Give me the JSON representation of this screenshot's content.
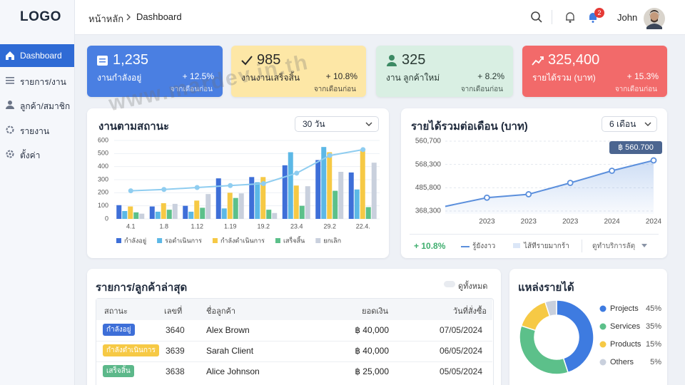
{
  "sidebar": {
    "logo": "LOGO",
    "active": 0,
    "nav": [
      "Dashboard",
      "รายการ/งาน",
      "ลูกค้า/สมาชิก",
      "รายงาน",
      "ตั้งค่า"
    ]
  },
  "topbar": {
    "breadcrumb": [
      "หน้าหลัก",
      "Dashboard"
    ],
    "notifications": 2,
    "user": "John"
  },
  "kpis": [
    {
      "value": "1,235",
      "label": "งานกำลังอยู่",
      "change": "+ 12.5%",
      "note": "จากเดือนก่อน",
      "color": "#4a7fe2",
      "text_color": "#ffffff"
    },
    {
      "value": "985",
      "label": "งานงานเสร็จสิ้น",
      "change": "+ 10.8%",
      "note": "จากเดือนก่อน",
      "color": "#fde7a6",
      "text_color": "#2a2a2a"
    },
    {
      "value": "325",
      "label": "งาน ลูกค้าใหม่",
      "change": "+ 8.2%",
      "note": "จากเดือนก่อน",
      "color": "#d9efe3",
      "text_color": "#2a3a34"
    },
    {
      "value": "325,400",
      "label": "รายได้รวม (บาท)",
      "change": "+ 15.3%",
      "note": "จากเดือนก่อน",
      "color": "#f26a6a",
      "text_color": "#ffffff"
    }
  ],
  "status_chart": {
    "type": "bar",
    "title": "งานตามสถานะ",
    "range": "30 วัน",
    "categories": [
      "4.1",
      "1.8",
      "1.12",
      "1.19",
      "19.2",
      "23.4",
      "29.2",
      "22.4."
    ],
    "ylim": [
      0,
      600
    ],
    "yticks": [
      0,
      100,
      200,
      300,
      400,
      500,
      600
    ],
    "grid": true,
    "series": [
      {
        "name": "กำลังอยู่",
        "color": "#3e6fd8",
        "values": [
          105,
          95,
          100,
          310,
          320,
          410,
          450,
          355
        ]
      },
      {
        "name": "รอดำเนินการ",
        "color": "#5cb8e6",
        "values": [
          60,
          55,
          55,
          80,
          280,
          510,
          550,
          225
        ]
      },
      {
        "name": "กำลังดำเนินการ",
        "color": "#f6c945",
        "values": [
          95,
          120,
          140,
          200,
          320,
          255,
          510,
          520
        ]
      },
      {
        "name": "เสร็จสิ้น",
        "color": "#5cc08a",
        "values": [
          50,
          70,
          85,
          160,
          70,
          100,
          215,
          90
        ]
      },
      {
        "name": "ยกเลิก",
        "color": "#c9d0dd",
        "values": [
          40,
          115,
          190,
          195,
          45,
          250,
          360,
          430
        ]
      }
    ],
    "line": {
      "color": "#8fcdf0",
      "values": [
        215,
        225,
        240,
        255,
        270,
        350,
        485,
        530
      ]
    }
  },
  "revenue_chart": {
    "type": "line",
    "title": "รายได้รวมต่อเดือน (บาท)",
    "range": "6 เดือน",
    "x": [
      null,
      "2023",
      "2023",
      "2023",
      "2024",
      "2024"
    ],
    "y_labels": [
      "560,700",
      "568,300",
      "485,800",
      "368,300"
    ],
    "ylim": [
      340000,
      640000
    ],
    "series": [
      {
        "color": "#5b8fdc",
        "values": [
          371000,
          407000,
          421000,
          468000,
          518000,
          560700
        ],
        "value_labels": [
          null,
          null,
          null,
          null,
          null,
          "฿ 560.700"
        ]
      }
    ],
    "footer": {
      "change": "+ 10.8%",
      "legend": [
        "รู้ยังงาว",
        "ไส้ทีรายมากร้า"
      ],
      "link": "ดูทำบริการลัตุ"
    }
  },
  "orders": {
    "title": "รายการ/ลูกค้าล่าสุด",
    "view_all": "ดูทั้งหมด",
    "columns": [
      "สถานะ",
      "เลขที่",
      "ชื่อลูกค้า",
      "ยอดเงิน",
      "วันที่สั่งซื้อ"
    ],
    "rows": [
      {
        "status": "กำลังอยู่",
        "status_color": "#3e6fd8",
        "id": "3640",
        "customer": "Alex Brown",
        "amount": "฿ 40,000",
        "date": "07/05/2024"
      },
      {
        "status": "กำลังดำเนินการ",
        "status_color": "#f6c945",
        "id": "3639",
        "customer": "Sarah Client",
        "amount": "฿ 40,000",
        "date": "06/05/2024"
      },
      {
        "status": "เสร็จสิ้น",
        "status_color": "#5cb88a",
        "id": "3638",
        "customer": "Alice Johnson",
        "amount": "฿ 25,000",
        "date": "05/05/2024"
      }
    ]
  },
  "sources": {
    "type": "pie",
    "title": "แหล่งรายได้",
    "categories": [
      "Projects",
      "Services",
      "Products",
      "Others"
    ],
    "values": [
      45,
      35,
      15,
      5
    ],
    "value_labels": [
      "45%",
      "35%",
      "15%",
      "5%"
    ],
    "colors": [
      "#3e7be0",
      "#5cc08a",
      "#f6c945",
      "#c9d0dd"
    ]
  },
  "watermark": "www.mardev.in.th"
}
